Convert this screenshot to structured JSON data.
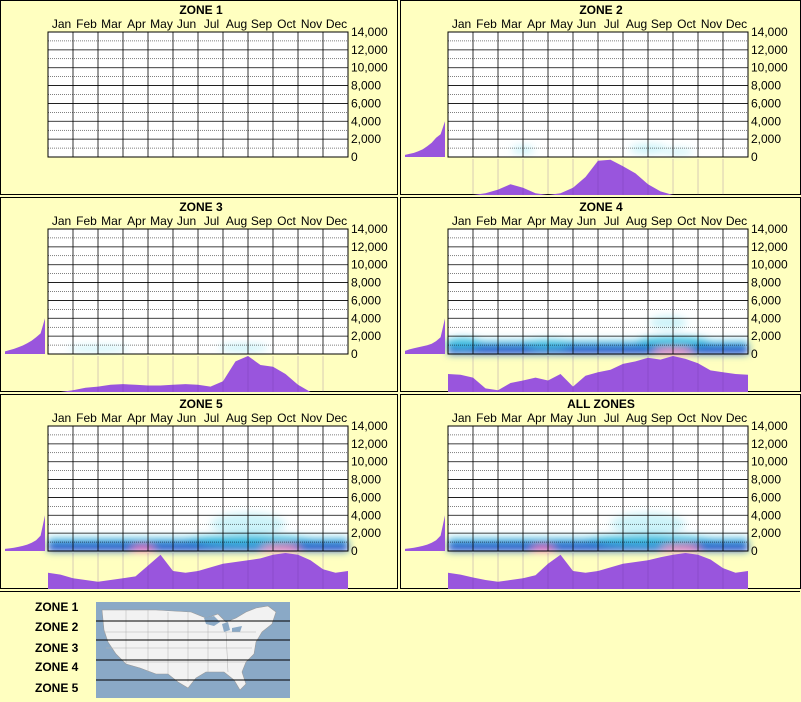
{
  "months": [
    "Jan",
    "Feb",
    "Mar",
    "Apr",
    "May",
    "Jun",
    "Jul",
    "Aug",
    "Sep",
    "Oct",
    "Nov",
    "Dec"
  ],
  "colors": {
    "background": "#ffffc0",
    "profile": "#9955dd",
    "heat_low": "#bff0f8",
    "heat_mid": "#40c0e0",
    "heat_high": "#0000c0",
    "heat_peak": "#ff2090",
    "map_water": "#8aa9c6",
    "map_land": "#f2f2f2"
  },
  "chart_data": [
    {
      "type": "heatmap",
      "title": "ZONE 1",
      "x": [
        "Jan",
        "Feb",
        "Mar",
        "Apr",
        "May",
        "Jun",
        "Jul",
        "Aug",
        "Sep",
        "Oct",
        "Nov",
        "Dec"
      ],
      "ylim": [
        0,
        14000
      ],
      "yticks": [
        "14,000",
        "12,000",
        "10,000",
        "8,000",
        "6,000",
        "4,000",
        "2,000",
        "0"
      ],
      "bands": [],
      "elevation_profile": [],
      "monthly_profile": [
        0,
        0,
        0,
        0,
        0,
        0,
        0,
        0,
        0,
        0,
        0,
        0,
        0
      ]
    },
    {
      "type": "heatmap",
      "title": "ZONE 2",
      "x": [
        "Jan",
        "Feb",
        "Mar",
        "Apr",
        "May",
        "Jun",
        "Jul",
        "Aug",
        "Sep",
        "Oct",
        "Nov",
        "Dec"
      ],
      "ylim": [
        0,
        14000
      ],
      "yticks": [
        "14,000",
        "12,000",
        "10,000",
        "8,000",
        "6,000",
        "4,000",
        "2,000",
        "0"
      ],
      "bands": [
        {
          "m": 3.0,
          "y": 800,
          "w": 0.9,
          "h": 900,
          "level": 1
        },
        {
          "m": 8.0,
          "y": 900,
          "w": 1.5,
          "h": 1100,
          "level": 1
        },
        {
          "m": 9.2,
          "y": 600,
          "w": 1.2,
          "h": 700,
          "level": 1
        }
      ],
      "elevation_profile": [
        0.08,
        0.12,
        0.16,
        0.22,
        0.3,
        0.42,
        0.55,
        0.75,
        0.88,
        1.0
      ],
      "monthly_profile": [
        0,
        0,
        0,
        0.05,
        0.15,
        0.3,
        0.2,
        0.05,
        0,
        0.05,
        0.2,
        0.5,
        0.95,
        0.98,
        0.8,
        0.6,
        0.3,
        0.1,
        0,
        0,
        0,
        0,
        0,
        0,
        0
      ]
    },
    {
      "type": "heatmap",
      "title": "ZONE 3",
      "x": [
        "Jan",
        "Feb",
        "Mar",
        "Apr",
        "May",
        "Jun",
        "Jul",
        "Aug",
        "Sep",
        "Oct",
        "Nov",
        "Dec"
      ],
      "ylim": [
        0,
        14000
      ],
      "yticks": [
        "14,000",
        "12,000",
        "10,000",
        "8,000",
        "6,000",
        "4,000",
        "2,000",
        "0"
      ],
      "bands": [
        {
          "m": 2.0,
          "y": 600,
          "w": 2.5,
          "h": 700,
          "level": 1
        },
        {
          "m": 7.8,
          "y": 700,
          "w": 2.0,
          "h": 900,
          "level": 1
        }
      ],
      "elevation_profile": [
        0.1,
        0.15,
        0.2,
        0.26,
        0.33,
        0.42,
        0.52,
        0.65,
        0.8,
        1.0
      ],
      "monthly_profile": [
        0,
        0,
        0.05,
        0.12,
        0.15,
        0.2,
        0.22,
        0.2,
        0.18,
        0.18,
        0.2,
        0.22,
        0.2,
        0.15,
        0.3,
        0.85,
        1.0,
        0.75,
        0.7,
        0.5,
        0.2,
        0,
        0,
        0,
        0
      ]
    },
    {
      "type": "heatmap",
      "title": "ZONE 4",
      "x": [
        "Jan",
        "Feb",
        "Mar",
        "Apr",
        "May",
        "Jun",
        "Jul",
        "Aug",
        "Sep",
        "Oct",
        "Nov",
        "Dec"
      ],
      "ylim": [
        0,
        14000
      ],
      "yticks": [
        "14,000",
        "12,000",
        "10,000",
        "8,000",
        "6,000",
        "4,000",
        "2,000",
        "0"
      ],
      "bands": [
        {
          "m": 0.6,
          "y": 1200,
          "w": 1.5,
          "h": 1200,
          "level": 2
        },
        {
          "m": 4.0,
          "y": 1100,
          "w": 2.0,
          "h": 1000,
          "level": 2
        },
        {
          "m": 8.8,
          "y": 3500,
          "w": 1.5,
          "h": 1500,
          "level": 1
        },
        {
          "m": 9.0,
          "y": 1300,
          "w": 3.0,
          "h": 1300,
          "level": 2
        },
        {
          "m": 9.0,
          "y": 400,
          "w": 1.6,
          "h": 500,
          "level": 4
        }
      ],
      "base_strip": true,
      "elevation_profile": [
        0.12,
        0.18,
        0.22,
        0.26,
        0.3,
        0.34,
        0.4,
        0.5,
        0.65,
        1.0
      ],
      "monthly_profile": [
        0.5,
        0.48,
        0.4,
        0.1,
        0.05,
        0.25,
        0.32,
        0.4,
        0.32,
        0.5,
        0.15,
        0.45,
        0.55,
        0.62,
        0.78,
        0.85,
        0.95,
        0.9,
        1.0,
        0.92,
        0.8,
        0.6,
        0.55,
        0.5,
        0.48
      ]
    },
    {
      "type": "heatmap",
      "title": "ZONE 5",
      "x": [
        "Jan",
        "Feb",
        "Mar",
        "Apr",
        "May",
        "Jun",
        "Jul",
        "Aug",
        "Sep",
        "Oct",
        "Nov",
        "Dec"
      ],
      "ylim": [
        0,
        14000
      ],
      "yticks": [
        "14,000",
        "12,000",
        "10,000",
        "8,000",
        "6,000",
        "4,000",
        "2,000",
        "0"
      ],
      "bands": [
        {
          "m": 3.8,
          "y": 300,
          "w": 0.9,
          "h": 400,
          "level": 4
        },
        {
          "m": 8.0,
          "y": 3000,
          "w": 3.0,
          "h": 2500,
          "level": 1
        },
        {
          "m": 8.0,
          "y": 1200,
          "w": 5.0,
          "h": 1200,
          "level": 2
        },
        {
          "m": 9.3,
          "y": 400,
          "w": 1.6,
          "h": 500,
          "level": 4
        }
      ],
      "base_strip": true,
      "elevation_profile": [
        0.08,
        0.1,
        0.13,
        0.16,
        0.2,
        0.25,
        0.32,
        0.42,
        0.6,
        1.0
      ],
      "monthly_profile": [
        0.45,
        0.4,
        0.3,
        0.25,
        0.2,
        0.25,
        0.3,
        0.35,
        0.65,
        0.95,
        0.5,
        0.45,
        0.5,
        0.6,
        0.7,
        0.75,
        0.8,
        0.85,
        0.95,
        1.0,
        0.95,
        0.8,
        0.55,
        0.45,
        0.5
      ]
    },
    {
      "type": "heatmap",
      "title": "ALL ZONES",
      "x": [
        "Jan",
        "Feb",
        "Mar",
        "Apr",
        "May",
        "Jun",
        "Jul",
        "Aug",
        "Sep",
        "Oct",
        "Nov",
        "Dec"
      ],
      "ylim": [
        0,
        14000
      ],
      "yticks": [
        "14,000",
        "12,000",
        "10,000",
        "8,000",
        "6,000",
        "4,000",
        "2,000",
        "0"
      ],
      "bands": [
        {
          "m": 3.8,
          "y": 300,
          "w": 0.9,
          "h": 400,
          "level": 4
        },
        {
          "m": 8.0,
          "y": 3000,
          "w": 3.0,
          "h": 2500,
          "level": 1
        },
        {
          "m": 8.0,
          "y": 1200,
          "w": 5.0,
          "h": 1200,
          "level": 2
        },
        {
          "m": 9.3,
          "y": 400,
          "w": 1.6,
          "h": 500,
          "level": 4
        }
      ],
      "base_strip": true,
      "elevation_profile": [
        0.08,
        0.1,
        0.13,
        0.16,
        0.2,
        0.25,
        0.32,
        0.42,
        0.6,
        1.0
      ],
      "monthly_profile": [
        0.45,
        0.4,
        0.32,
        0.25,
        0.2,
        0.25,
        0.3,
        0.38,
        0.7,
        0.95,
        0.5,
        0.45,
        0.5,
        0.6,
        0.7,
        0.75,
        0.8,
        0.88,
        0.95,
        1.0,
        0.95,
        0.82,
        0.58,
        0.45,
        0.5
      ]
    }
  ],
  "legend": {
    "zones": [
      "ZONE 1",
      "ZONE 2",
      "ZONE 3",
      "ZONE 4",
      "ZONE 5"
    ]
  }
}
